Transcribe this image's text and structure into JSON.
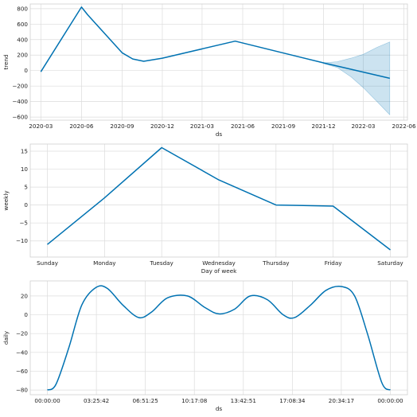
{
  "chart_data": [
    {
      "type": "line",
      "ylabel": "trend",
      "xlabel": "ds",
      "x_type": "date",
      "x_ticks": [
        "2020-03-01",
        "2020-06-01",
        "2020-09-01",
        "2020-12-01",
        "2021-03-01",
        "2021-06-01",
        "2021-09-01",
        "2021-12-01",
        "2022-03-01",
        "2022-06-01"
      ],
      "x_tick_labels": [
        "2020-03",
        "2020-06",
        "2020-09",
        "2020-12",
        "2021-03",
        "2021-06",
        "2021-09",
        "2021-12",
        "2022-03",
        "2022-06"
      ],
      "xlim": [
        "2020-02-06",
        "2022-06-09"
      ],
      "y_ticks": [
        -600,
        -400,
        -200,
        0,
        200,
        400,
        600,
        800
      ],
      "y_tick_labels": [
        "−600",
        "−400",
        "−200",
        "0",
        "200",
        "400",
        "600",
        "800"
      ],
      "ylim": [
        -640,
        860
      ],
      "grid": true,
      "line_color": "#0072b2",
      "band_color": "#0072b2",
      "series": [
        {
          "x": [
            "2020-03-01",
            "2020-06-01",
            "2020-06-15",
            "2020-09-01",
            "2020-09-25",
            "2020-10-20",
            "2020-12-01",
            "2021-05-15",
            "2021-12-01",
            "2022-04-30"
          ],
          "values": [
            -15,
            820,
            720,
            230,
            150,
            120,
            160,
            380,
            100,
            -100
          ]
        }
      ],
      "uncertainty_band": {
        "x": [
          "2021-12-01",
          "2022-01-01",
          "2022-02-01",
          "2022-03-01",
          "2022-04-01",
          "2022-04-30"
        ],
        "upper": [
          100,
          115,
          160,
          210,
          300,
          370
        ],
        "lower": [
          90,
          40,
          -80,
          -220,
          -400,
          -570
        ]
      }
    },
    {
      "type": "line",
      "ylabel": "weekly",
      "xlabel": "Day of week",
      "categories": [
        "Sunday",
        "Monday",
        "Tuesday",
        "Wednesday",
        "Thursday",
        "Friday",
        "Saturday"
      ],
      "y_ticks": [
        -10,
        -5,
        0,
        5,
        10,
        15
      ],
      "y_tick_labels": [
        "−10",
        "−5",
        "0",
        "5",
        "10",
        "15"
      ],
      "ylim": [
        -14.5,
        17
      ],
      "grid": true,
      "line_color": "#0072b2",
      "series": [
        {
          "values": [
            -11,
            2,
            16,
            7,
            0,
            -0.3,
            -12.5
          ]
        }
      ]
    },
    {
      "type": "line",
      "ylabel": "daily",
      "xlabel": "ds",
      "x_unit": "hours",
      "x_ticks": [
        0,
        3.4283,
        6.8569,
        10.2856,
        13.7142,
        17.1428,
        20.5714,
        24
      ],
      "x_tick_labels": [
        "00:00:00",
        "03:25:42",
        "06:51:25",
        "10:17:08",
        "13:42:51",
        "17:08:34",
        "20:34:17",
        "00:00:00"
      ],
      "xlim": [
        -1.2,
        25.2
      ],
      "y_ticks": [
        -80,
        -60,
        -40,
        -20,
        0,
        20
      ],
      "y_tick_labels": [
        "−80",
        "−60",
        "−40",
        "−20",
        "0",
        "20"
      ],
      "ylim": [
        -85,
        36
      ],
      "grid": true,
      "line_color": "#0072b2",
      "series": [
        {
          "x": [
            0,
            0.6,
            1.5,
            2.4,
            3.4,
            4.2,
            5.3,
            6.4,
            7.3,
            8.4,
            9.8,
            11.0,
            12.0,
            13.1,
            14.2,
            15.4,
            16.5,
            17.3,
            18.4,
            19.5,
            20.6,
            21.5,
            22.4,
            23.4,
            24
          ],
          "values": [
            -80,
            -74,
            -35,
            10,
            29,
            28,
            10,
            -3,
            3,
            18,
            20,
            8,
            1,
            6,
            20,
            16,
            0,
            -3,
            10,
            26,
            30,
            20,
            -20,
            -72,
            -80
          ]
        }
      ]
    }
  ]
}
